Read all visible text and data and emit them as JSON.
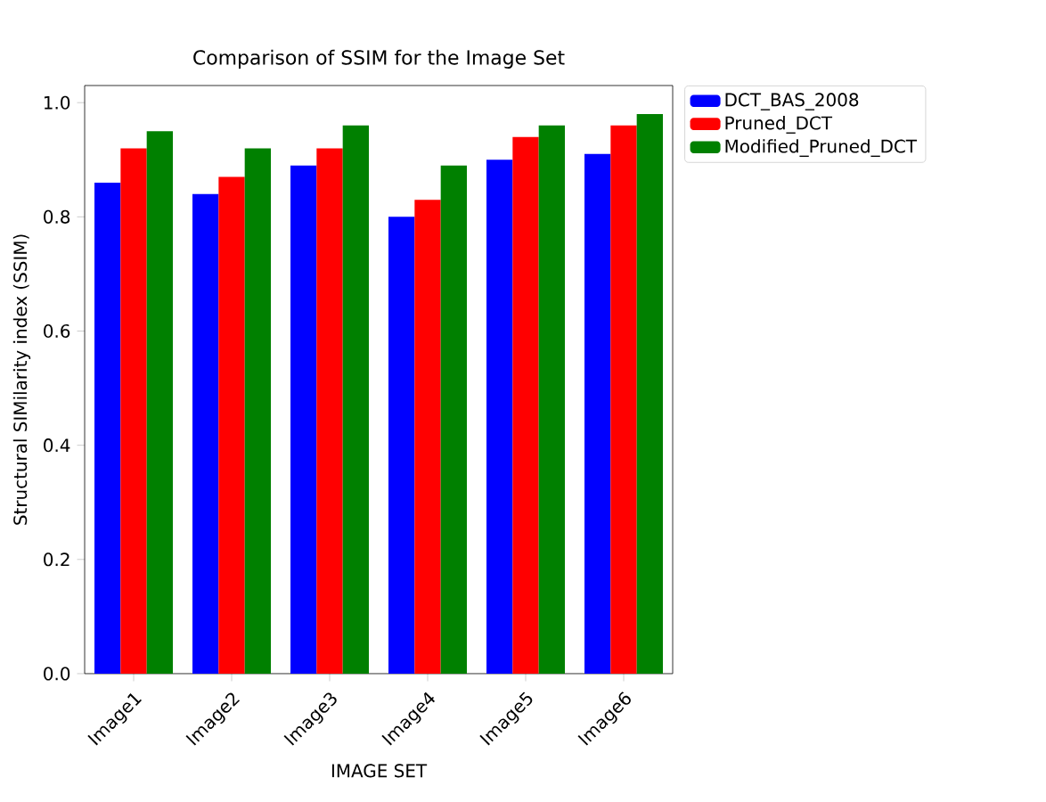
{
  "chart_data": {
    "type": "bar",
    "title": "Comparison of SSIM for the Image Set",
    "xlabel": "IMAGE SET",
    "ylabel": "Structural SIMilarity index (SSIM)",
    "categories": [
      "Image1",
      "Image2",
      "Image3",
      "Image4",
      "Image5",
      "Image6"
    ],
    "series": [
      {
        "name": "DCT_BAS_2008",
        "color": "#0000ff",
        "values": [
          0.86,
          0.84,
          0.89,
          0.8,
          0.9,
          0.91
        ]
      },
      {
        "name": "Pruned_DCT",
        "color": "#ff0000",
        "values": [
          0.92,
          0.87,
          0.92,
          0.83,
          0.94,
          0.96
        ]
      },
      {
        "name": "Modified_Pruned_DCT",
        "color": "#008000",
        "values": [
          0.95,
          0.92,
          0.96,
          0.89,
          0.96,
          0.98
        ]
      }
    ],
    "ylim": [
      0,
      1.03
    ],
    "yticks": [
      {
        "value": 0,
        "label": "0.0"
      },
      {
        "value": 0.2,
        "label": "0.2"
      },
      {
        "value": 0.4,
        "label": "0.4"
      },
      {
        "value": 0.6,
        "label": "0.6"
      },
      {
        "value": 0.8,
        "label": "0.8"
      },
      {
        "value": 1,
        "label": "1.0"
      }
    ],
    "legend": "top right",
    "grid": false
  }
}
